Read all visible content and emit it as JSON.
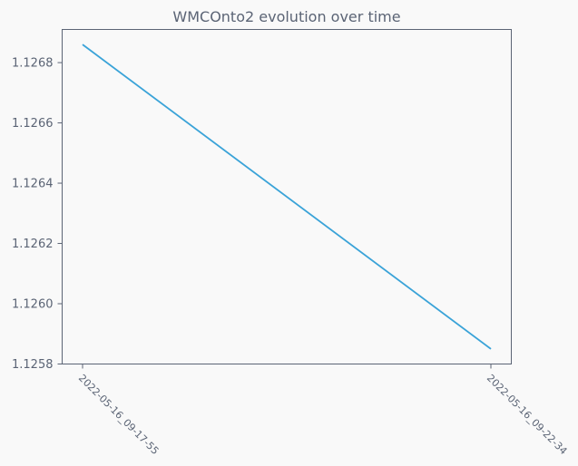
{
  "chart_data": {
    "type": "line",
    "title": "WMCOnto2 evolution over time",
    "xlabel": "",
    "ylabel": "",
    "categories": [
      "2022-05-16_09-17-55",
      "2022-05-16_09-22-34"
    ],
    "series": [
      {
        "values": [
          1.12686,
          1.12585
        ]
      }
    ],
    "ylim": [
      1.1258,
      1.12691
    ],
    "yticks": [
      1.1258,
      1.126,
      1.1262,
      1.1264,
      1.1266,
      1.1268
    ],
    "ytick_labels": [
      "1.1258",
      "1.1260",
      "1.1262",
      "1.1264",
      "1.1266",
      "1.1268"
    ],
    "grid": false,
    "line_color": "#3aa3d8",
    "axis_color": "#5b6475",
    "background": "#f9f9f9"
  }
}
